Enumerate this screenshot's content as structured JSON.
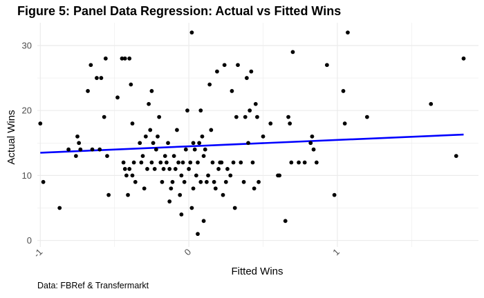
{
  "title": "Figure 5: Panel Data Regression: Actual vs Fitted Wins",
  "caption": "Data: FBRef & Transfermarkt",
  "chart_data": {
    "type": "scatter",
    "xlabel": "Fitted Wins",
    "ylabel": "Actual Wins",
    "xlim": [
      -1.02,
      1.95
    ],
    "ylim": [
      -1.0,
      33.5
    ],
    "xticks": [
      -1,
      0,
      1
    ],
    "yticks": [
      0,
      10,
      20,
      30
    ],
    "grid": true,
    "colors": {
      "points": "#000000",
      "fit_line": "#0000ff",
      "grid": "#ebebeb"
    },
    "fit_line": {
      "x": [
        -1.0,
        1.85
      ],
      "y": [
        13.5,
        16.3
      ]
    },
    "points": [
      [
        -1.0,
        18
      ],
      [
        -0.98,
        9
      ],
      [
        -0.87,
        5
      ],
      [
        -0.81,
        14
      ],
      [
        -0.76,
        13
      ],
      [
        -0.75,
        16
      ],
      [
        -0.74,
        15
      ],
      [
        -0.73,
        14
      ],
      [
        -0.68,
        23
      ],
      [
        -0.66,
        27
      ],
      [
        -0.65,
        14
      ],
      [
        -0.62,
        25
      ],
      [
        -0.6,
        14
      ],
      [
        -0.59,
        25
      ],
      [
        -0.57,
        19
      ],
      [
        -0.56,
        28
      ],
      [
        -0.55,
        13
      ],
      [
        -0.54,
        7
      ],
      [
        -0.48,
        22
      ],
      [
        -0.45,
        28
      ],
      [
        -0.44,
        12
      ],
      [
        -0.43,
        28
      ],
      [
        -0.43,
        11
      ],
      [
        -0.42,
        10
      ],
      [
        -0.41,
        7
      ],
      [
        -0.4,
        28
      ],
      [
        -0.4,
        11
      ],
      [
        -0.39,
        24
      ],
      [
        -0.38,
        10
      ],
      [
        -0.38,
        18
      ],
      [
        -0.37,
        12
      ],
      [
        -0.36,
        9
      ],
      [
        -0.33,
        15
      ],
      [
        -0.32,
        12
      ],
      [
        -0.31,
        13
      ],
      [
        -0.3,
        8
      ],
      [
        -0.29,
        16
      ],
      [
        -0.28,
        11
      ],
      [
        -0.27,
        21
      ],
      [
        -0.26,
        17
      ],
      [
        -0.25,
        12
      ],
      [
        -0.25,
        23
      ],
      [
        -0.24,
        15
      ],
      [
        -0.23,
        11
      ],
      [
        -0.22,
        14
      ],
      [
        -0.21,
        16
      ],
      [
        -0.2,
        19
      ],
      [
        -0.19,
        12
      ],
      [
        -0.18,
        9
      ],
      [
        -0.17,
        11
      ],
      [
        -0.16,
        13
      ],
      [
        -0.15,
        12
      ],
      [
        -0.14,
        15
      ],
      [
        -0.13,
        11
      ],
      [
        -0.13,
        6
      ],
      [
        -0.12,
        8
      ],
      [
        -0.11,
        9
      ],
      [
        -0.1,
        13
      ],
      [
        -0.09,
        11
      ],
      [
        -0.08,
        17
      ],
      [
        -0.07,
        12
      ],
      [
        -0.06,
        7
      ],
      [
        -0.05,
        10
      ],
      [
        -0.05,
        4
      ],
      [
        -0.04,
        12
      ],
      [
        -0.03,
        9
      ],
      [
        -0.02,
        14
      ],
      [
        -0.01,
        20
      ],
      [
        0.0,
        11
      ],
      [
        0.01,
        12
      ],
      [
        0.02,
        32
      ],
      [
        0.02,
        5
      ],
      [
        0.03,
        15
      ],
      [
        0.03,
        8
      ],
      [
        0.04,
        14
      ],
      [
        0.05,
        10
      ],
      [
        0.06,
        12
      ],
      [
        0.06,
        1
      ],
      [
        0.07,
        15
      ],
      [
        0.08,
        9
      ],
      [
        0.08,
        20
      ],
      [
        0.09,
        16
      ],
      [
        0.1,
        13
      ],
      [
        0.1,
        3
      ],
      [
        0.11,
        14
      ],
      [
        0.12,
        9
      ],
      [
        0.13,
        10
      ],
      [
        0.14,
        24
      ],
      [
        0.15,
        17
      ],
      [
        0.16,
        12
      ],
      [
        0.17,
        9
      ],
      [
        0.18,
        8
      ],
      [
        0.19,
        26
      ],
      [
        0.2,
        11
      ],
      [
        0.21,
        12
      ],
      [
        0.22,
        12
      ],
      [
        0.23,
        7
      ],
      [
        0.24,
        27
      ],
      [
        0.25,
        9
      ],
      [
        0.26,
        11
      ],
      [
        0.28,
        10
      ],
      [
        0.29,
        23
      ],
      [
        0.3,
        12
      ],
      [
        0.31,
        5
      ],
      [
        0.32,
        19
      ],
      [
        0.33,
        27
      ],
      [
        0.35,
        12
      ],
      [
        0.37,
        9
      ],
      [
        0.38,
        19
      ],
      [
        0.39,
        25
      ],
      [
        0.4,
        15
      ],
      [
        0.41,
        20
      ],
      [
        0.42,
        26
      ],
      [
        0.43,
        12
      ],
      [
        0.44,
        8
      ],
      [
        0.45,
        21
      ],
      [
        0.46,
        19
      ],
      [
        0.47,
        9
      ],
      [
        0.5,
        16
      ],
      [
        0.55,
        18
      ],
      [
        0.6,
        10
      ],
      [
        0.61,
        10
      ],
      [
        0.65,
        3
      ],
      [
        0.67,
        19
      ],
      [
        0.68,
        18
      ],
      [
        0.69,
        12
      ],
      [
        0.7,
        29
      ],
      [
        0.74,
        12
      ],
      [
        0.78,
        12
      ],
      [
        0.82,
        15
      ],
      [
        0.83,
        16
      ],
      [
        0.84,
        14
      ],
      [
        0.86,
        12
      ],
      [
        0.93,
        27
      ],
      [
        0.98,
        7
      ],
      [
        1.04,
        23
      ],
      [
        1.05,
        18
      ],
      [
        1.07,
        32
      ],
      [
        1.2,
        19
      ],
      [
        1.63,
        21
      ],
      [
        1.8,
        13
      ],
      [
        1.85,
        28
      ]
    ]
  }
}
